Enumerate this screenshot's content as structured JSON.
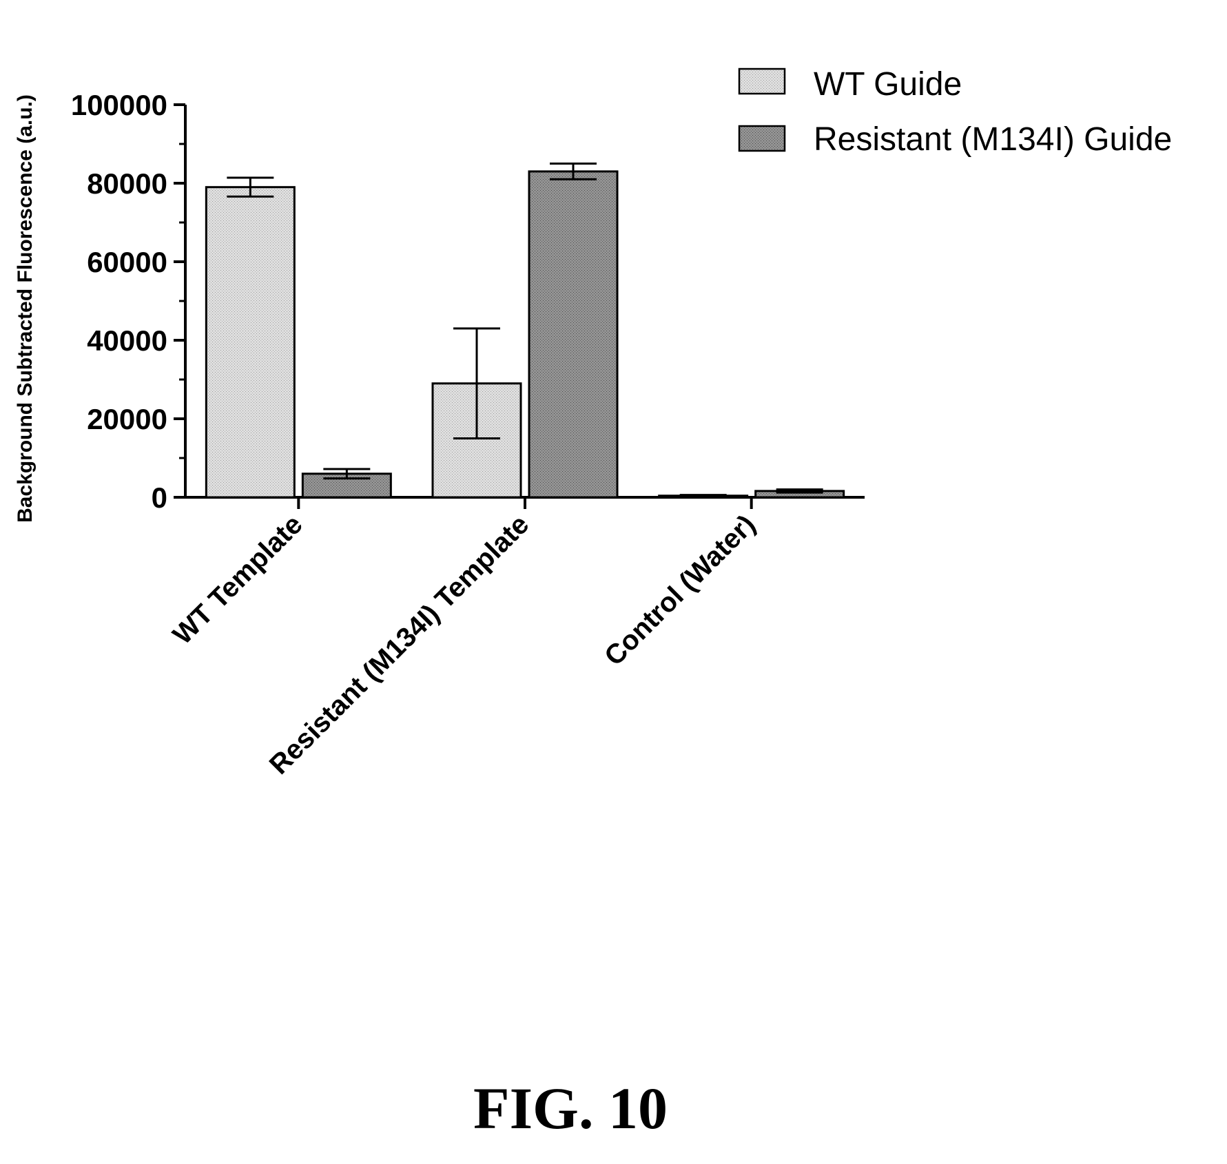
{
  "chart_data": {
    "type": "bar",
    "ylabel": "Background Subtracted Fluorescence  (a.u.)",
    "ylim": [
      0,
      100000
    ],
    "yticks": [
      0,
      20000,
      40000,
      60000,
      80000,
      100000
    ],
    "ytick_labels": [
      "0",
      "20000",
      "40000",
      "60000",
      "80000",
      "100000"
    ],
    "categories": [
      "WT Template",
      "Resistant (M134I) Template",
      "Control (Water)"
    ],
    "series": [
      {
        "name": "WT Guide",
        "values": [
          79000,
          29000,
          400
        ],
        "error": [
          2400,
          14000,
          200
        ],
        "color": "#d9d9d9"
      },
      {
        "name": "Resistant (M134I) Guide",
        "values": [
          6000,
          83000,
          1600
        ],
        "error": [
          1200,
          2000,
          400
        ],
        "color": "#8c8c8c"
      }
    ],
    "legend_position": "top-right",
    "grid": false
  },
  "caption": "FIG. 10"
}
